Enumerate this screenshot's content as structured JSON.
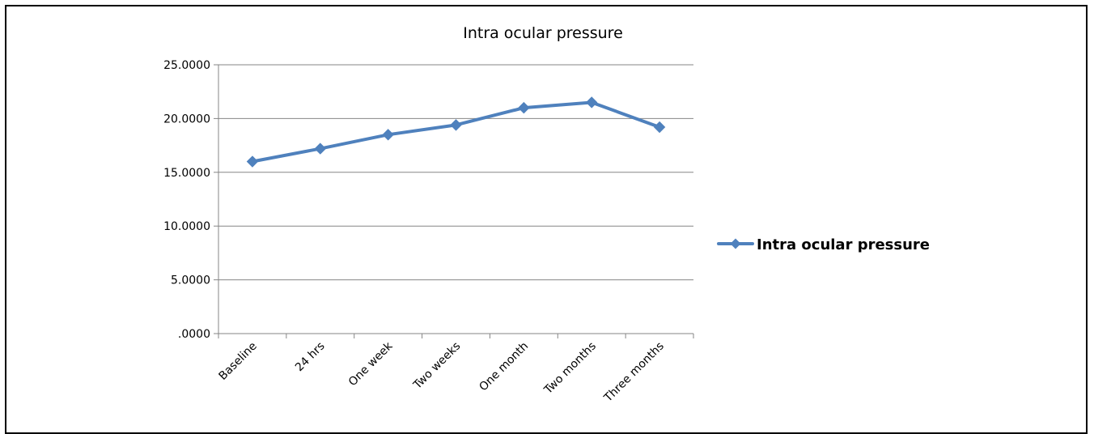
{
  "chart_data": {
    "type": "line",
    "title": "Intra ocular pressure",
    "xlabel": "",
    "ylabel": "",
    "categories": [
      "Baseline",
      "24 hrs",
      "One week",
      "Two weeks",
      "One month",
      "Two months",
      "Three months"
    ],
    "series": [
      {
        "name": "Intra ocular pressure",
        "color": "#4F81BD",
        "values": [
          16.0,
          17.2,
          18.5,
          19.4,
          21.0,
          21.5,
          19.2
        ]
      }
    ],
    "y_ticks": [
      "25.0000",
      "20.0000",
      "15.0000",
      "10.0000",
      "5.0000",
      ".0000"
    ],
    "ylim": [
      0,
      25
    ],
    "grid": true,
    "legend": "right"
  }
}
